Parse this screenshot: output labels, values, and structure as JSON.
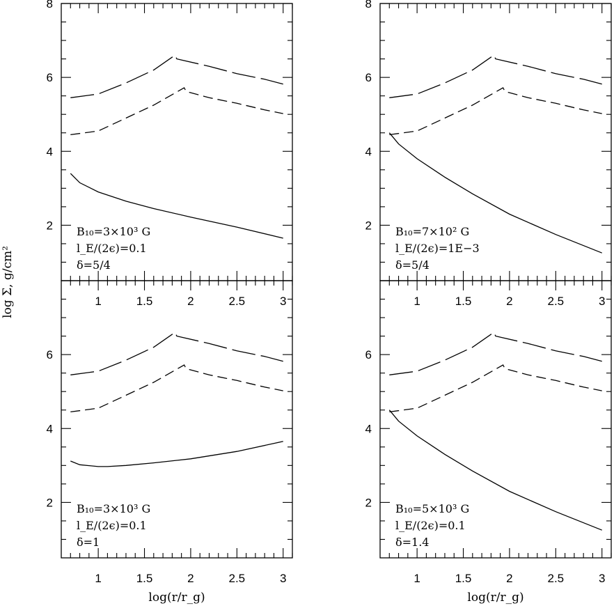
{
  "figure": {
    "ylabel": "log Σ, g/cm²",
    "xlabel": "log(r/r_g)"
  },
  "chart_data": [
    {
      "type": "line",
      "xlim": [
        0.6,
        3.1
      ],
      "ylim": [
        0.5,
        8
      ],
      "yticks": [
        "2",
        "4",
        "6",
        "8"
      ],
      "xticks": [
        "1",
        "1.5",
        "2",
        "2.5",
        "3"
      ],
      "show_xticklabels": true,
      "show_xlabel": false,
      "annotation": [
        "B₁₀=3×10³ G",
        "l_E/(2ϵ)=0.1",
        "δ=5/4"
      ],
      "series": [
        {
          "style": "long-dash",
          "x": [
            0.7,
            1.0,
            1.3,
            1.6,
            1.83,
            1.85,
            2.2,
            2.5,
            2.8,
            3.0
          ],
          "y": [
            5.45,
            5.55,
            5.85,
            6.2,
            6.6,
            6.5,
            6.3,
            6.1,
            5.95,
            5.82
          ]
        },
        {
          "style": "short-dash",
          "x": [
            0.7,
            1.0,
            1.3,
            1.6,
            1.93,
            1.95,
            2.2,
            2.5,
            2.8,
            3.0
          ],
          "y": [
            4.45,
            4.55,
            4.9,
            5.25,
            5.72,
            5.62,
            5.45,
            5.3,
            5.12,
            5.02
          ]
        },
        {
          "style": "solid",
          "x": [
            0.7,
            0.8,
            1.0,
            1.3,
            1.6,
            2.0,
            2.5,
            3.0
          ],
          "y": [
            3.4,
            3.15,
            2.9,
            2.65,
            2.45,
            2.22,
            1.95,
            1.65
          ]
        }
      ]
    },
    {
      "type": "line",
      "xlim": [
        0.6,
        3.1
      ],
      "ylim": [
        0.5,
        8
      ],
      "yticks": [
        "2",
        "4",
        "6",
        "8"
      ],
      "xticks": [
        "1",
        "1.5",
        "2",
        "2.5",
        "3"
      ],
      "show_xticklabels": true,
      "show_xlabel": false,
      "annotation": [
        "B₁₀=7×10² G",
        "l_E/(2ϵ)=1E−3",
        "δ=5/4"
      ],
      "series": [
        {
          "style": "long-dash",
          "x": [
            0.7,
            1.0,
            1.3,
            1.6,
            1.83,
            1.85,
            2.2,
            2.5,
            2.8,
            3.0
          ],
          "y": [
            5.45,
            5.55,
            5.85,
            6.2,
            6.6,
            6.5,
            6.3,
            6.1,
            5.95,
            5.82
          ]
        },
        {
          "style": "short-dash",
          "x": [
            0.7,
            1.0,
            1.3,
            1.6,
            1.93,
            1.95,
            2.2,
            2.5,
            2.8,
            3.0
          ],
          "y": [
            4.45,
            4.55,
            4.9,
            5.25,
            5.72,
            5.62,
            5.45,
            5.3,
            5.12,
            5.02
          ]
        },
        {
          "style": "solid",
          "x": [
            0.7,
            0.8,
            1.0,
            1.3,
            1.6,
            2.0,
            2.5,
            3.0
          ],
          "y": [
            4.5,
            4.2,
            3.8,
            3.3,
            2.85,
            2.3,
            1.75,
            1.25
          ]
        }
      ]
    },
    {
      "type": "line",
      "xlim": [
        0.6,
        3.1
      ],
      "ylim": [
        0.5,
        8
      ],
      "yticks": [
        "2",
        "4",
        "6"
      ],
      "xticks": [
        "1",
        "1.5",
        "2",
        "2.5",
        "3"
      ],
      "show_xticklabels": true,
      "show_xlabel": true,
      "annotation": [
        "B₁₀=3×10³ G",
        "l_E/(2ϵ)=0.1",
        "δ=1"
      ],
      "series": [
        {
          "style": "long-dash",
          "x": [
            0.7,
            1.0,
            1.3,
            1.6,
            1.83,
            1.85,
            2.2,
            2.5,
            2.8,
            3.0
          ],
          "y": [
            5.45,
            5.55,
            5.85,
            6.2,
            6.6,
            6.5,
            6.3,
            6.1,
            5.95,
            5.82
          ]
        },
        {
          "style": "short-dash",
          "x": [
            0.7,
            1.0,
            1.3,
            1.6,
            1.93,
            1.95,
            2.2,
            2.5,
            2.8,
            3.0
          ],
          "y": [
            4.45,
            4.55,
            4.9,
            5.25,
            5.72,
            5.62,
            5.45,
            5.3,
            5.12,
            5.02
          ]
        },
        {
          "style": "solid",
          "x": [
            0.7,
            0.8,
            1.0,
            1.1,
            1.3,
            1.6,
            2.0,
            2.5,
            3.0
          ],
          "y": [
            3.12,
            3.02,
            2.97,
            2.97,
            3.0,
            3.07,
            3.18,
            3.38,
            3.65
          ]
        }
      ]
    },
    {
      "type": "line",
      "xlim": [
        0.6,
        3.1
      ],
      "ylim": [
        0.5,
        8
      ],
      "yticks": [
        "2",
        "4",
        "6"
      ],
      "xticks": [
        "1",
        "1.5",
        "2",
        "2.5",
        "3"
      ],
      "show_xticklabels": true,
      "show_xlabel": true,
      "annotation": [
        "B₁₀=5×10³ G",
        "l_E/(2ϵ)=0.1",
        "δ=1.4"
      ],
      "series": [
        {
          "style": "long-dash",
          "x": [
            0.7,
            1.0,
            1.3,
            1.6,
            1.83,
            1.85,
            2.2,
            2.5,
            2.8,
            3.0
          ],
          "y": [
            5.45,
            5.55,
            5.85,
            6.2,
            6.6,
            6.5,
            6.3,
            6.1,
            5.95,
            5.82
          ]
        },
        {
          "style": "short-dash",
          "x": [
            0.7,
            1.0,
            1.3,
            1.6,
            1.93,
            1.95,
            2.2,
            2.5,
            2.8,
            3.0
          ],
          "y": [
            4.45,
            4.55,
            4.9,
            5.25,
            5.72,
            5.62,
            5.45,
            5.3,
            5.12,
            5.02
          ]
        },
        {
          "style": "solid",
          "x": [
            0.7,
            0.8,
            1.0,
            1.3,
            1.6,
            2.0,
            2.5,
            3.0
          ],
          "y": [
            4.5,
            4.2,
            3.8,
            3.3,
            2.85,
            2.3,
            1.75,
            1.25
          ]
        }
      ]
    }
  ]
}
